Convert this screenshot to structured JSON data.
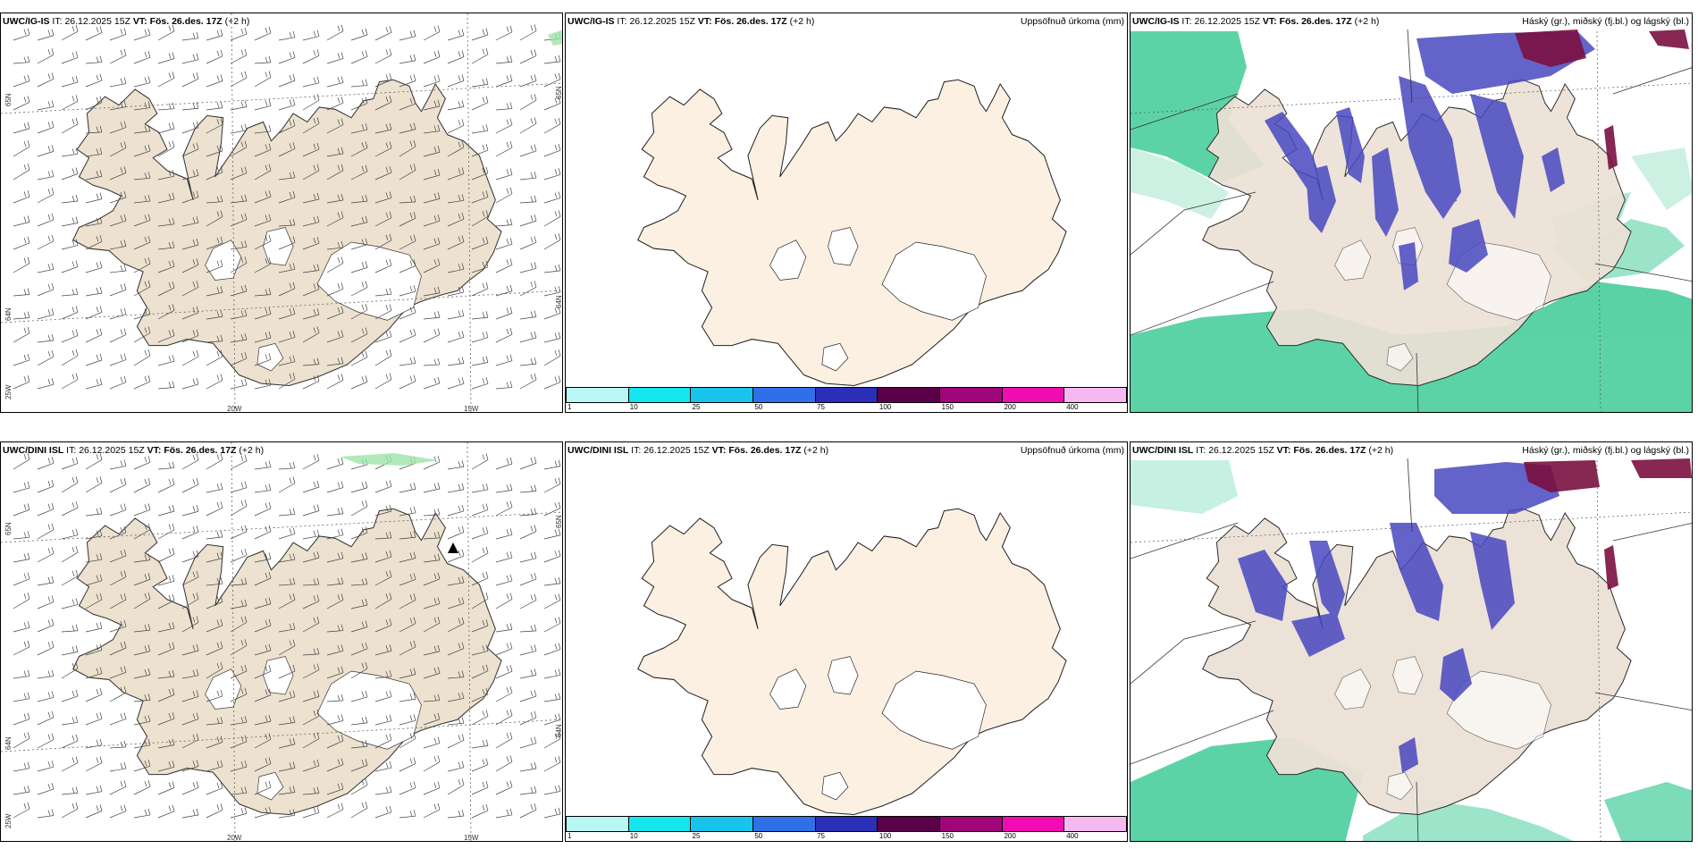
{
  "top_row": {
    "wind_panel": {
      "model": "UWC/IG-IS",
      "it_label": "IT:",
      "it_value": "26.12.2025 15Z",
      "vt_label": "VT:",
      "vt_value": "Fös. 26.des. 17Z",
      "lead": "(+2 h)",
      "grid_labels": {
        "lat_top_left": "65N",
        "lat_top_right": "65N",
        "lat_mid_left": "64N",
        "lat_mid_right": "64N",
        "lon_bottom_left": "25W",
        "lon_20": "20W",
        "lon_15": "15W"
      }
    },
    "precip_panel": {
      "model": "UWC/IG-IS",
      "it_label": "IT:",
      "it_value": "26.12.2025 15Z",
      "vt_label": "VT:",
      "vt_value": "Fös. 26.des. 17Z",
      "lead": "(+2 h)",
      "title": "Uppsöfnuð úrkoma (mm)"
    },
    "cloud_panel": {
      "model": "UWC/IG-IS",
      "it_label": "IT:",
      "it_value": "26.12.2025 15Z",
      "vt_label": "VT:",
      "vt_value": "Fös. 26.des. 17Z",
      "lead": "(+2 h)",
      "title": "Háský (gr.), miðský (fj.bl.) og lágský (bl.)"
    }
  },
  "bottom_row": {
    "wind_panel": {
      "model": "UWC/DINI ISL",
      "it_label": "IT:",
      "it_value": "26.12.2025 15Z",
      "vt_label": "VT:",
      "vt_value": "Fös. 26.des. 17Z",
      "lead": "(+2 h)",
      "grid_labels": {
        "lat_top_left": "65N",
        "lat_top_right": "65N",
        "lat_mid_left": "64N",
        "lat_mid_right": "64N",
        "lon_bottom_left": "25W",
        "lon_20": "20W",
        "lon_15": "15W"
      }
    },
    "precip_panel": {
      "model": "UWC/DINI ISL",
      "it_label": "IT:",
      "it_value": "26.12.2025 15Z",
      "vt_label": "VT:",
      "vt_value": "Fös. 26.des. 17Z",
      "lead": "(+2 h)",
      "title": "Uppsöfnuð úrkoma (mm)"
    },
    "cloud_panel": {
      "model": "UWC/DINI ISL",
      "it_label": "IT:",
      "it_value": "26.12.2025 15Z",
      "vt_label": "VT:",
      "vt_value": "Fös. 26.des. 17Z",
      "lead": "(+2 h)",
      "title": "Háský (gr.), miðský (fj.bl.) og lágský (bl.)"
    }
  },
  "colorbar": {
    "ticks": [
      "1",
      "10",
      "25",
      "50",
      "75",
      "100",
      "150",
      "200",
      "400"
    ],
    "colors": [
      "#b9f6f6",
      "#14e6ee",
      "#18c4ec",
      "#2f6fe8",
      "#2b2fb8",
      "#5a0048",
      "#a0067a",
      "#f00cb2",
      "#f5b8f0"
    ]
  },
  "colors": {
    "land_wind": "#ede1cf",
    "land_precip": "#fcf0e2",
    "land_cloud": "#ede1d6",
    "low_cloud_green": "#25c489",
    "mid_cloud_blue": "#4848c0",
    "high_cloud_purple": "#7a1040"
  }
}
